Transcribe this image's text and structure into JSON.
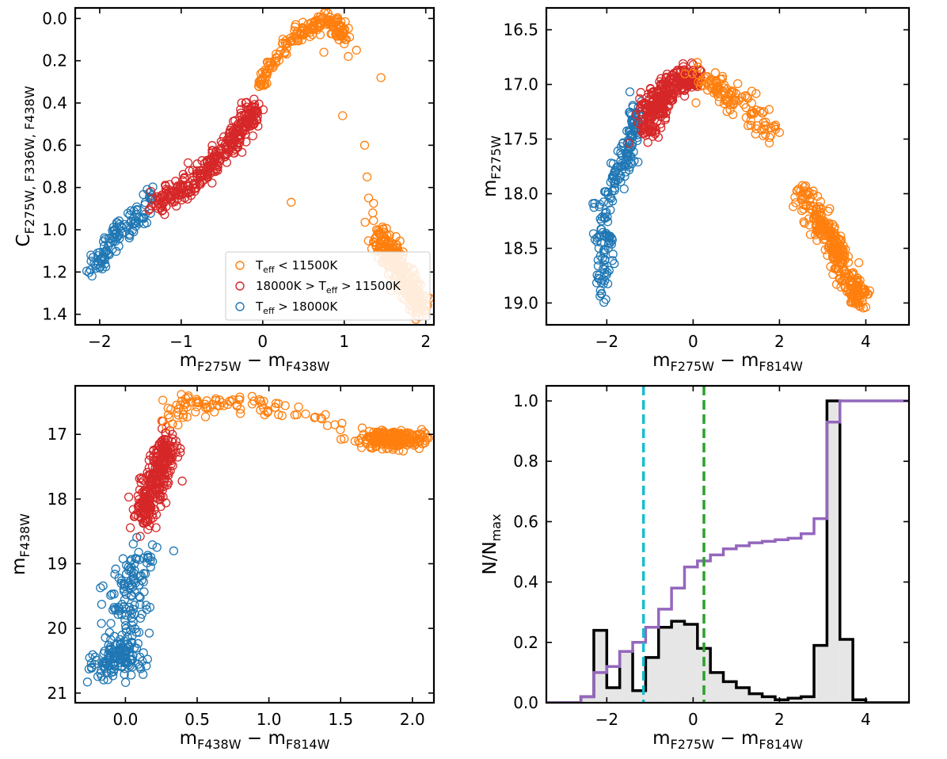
{
  "colors": {
    "cool": "#ff7f0e",
    "mid": "#d62728",
    "hot": "#1f77b4",
    "hist": "#000000",
    "cum": "#9467bd",
    "vline1": "#17becf",
    "vline2": "#2ca02c",
    "histfill": "#e6e6e6"
  },
  "chart_data": [
    {
      "id": "panel-a",
      "type": "scatter",
      "marker": "open-circle",
      "xlim": [
        -2.3,
        2.1
      ],
      "ylim": [
        1.45,
        -0.05
      ],
      "inverted_y": true,
      "xticks": [
        -2,
        -1,
        0,
        1,
        2
      ],
      "xtick_labels": [
        "−2",
        "−1",
        "0",
        "1",
        "2"
      ],
      "yticks": [
        0.0,
        0.2,
        0.4,
        0.6,
        0.8,
        1.0,
        1.2,
        1.4
      ],
      "ytick_labels": [
        "0.0",
        "0.2",
        "0.4",
        "0.6",
        "0.8",
        "1.0",
        "1.2",
        "1.4"
      ],
      "xlabel": {
        "main": "m",
        "sub1": "F275W",
        "mid": " − m",
        "sub2": "F438W"
      },
      "ylabel": {
        "main": "C",
        "sub1": "F275W, F336W, F438W"
      },
      "legend": {
        "position": "lower right",
        "entries": [
          {
            "color_key": "cool",
            "label": "T",
            "sub": "eff",
            "rest": " < 11500K"
          },
          {
            "color_key": "mid",
            "label": "18000K > T",
            "sub": "eff",
            "rest": " > 11500K"
          },
          {
            "color_key": "hot",
            "label": "T",
            "sub": "eff",
            "rest": " > 18000K"
          }
        ]
      },
      "series": [
        {
          "color_key": "cool",
          "points": [
            [
              -0.05,
              0.32
            ],
            [
              0.0,
              0.28
            ],
            [
              0.05,
              0.25
            ],
            [
              0.1,
              0.22
            ],
            [
              0.2,
              0.17
            ],
            [
              0.3,
              0.12
            ],
            [
              0.4,
              0.09
            ],
            [
              0.5,
              0.06
            ],
            [
              0.6,
              0.04
            ],
            [
              0.7,
              0.02
            ],
            [
              0.8,
              0.01
            ],
            [
              0.85,
              0.02
            ],
            [
              0.9,
              0.04
            ],
            [
              0.95,
              0.08
            ],
            [
              1.0,
              0.12
            ],
            [
              1.05,
              0.18
            ],
            [
              0.75,
              0.16
            ],
            [
              0.98,
              0.46
            ],
            [
              1.45,
              0.28
            ],
            [
              1.15,
              0.15
            ],
            [
              0.35,
              0.87
            ],
            [
              1.25,
              0.6
            ],
            [
              1.28,
              0.75
            ],
            [
              1.3,
              0.85
            ],
            [
              1.35,
              0.92
            ],
            [
              1.4,
              1.0
            ],
            [
              1.45,
              1.05
            ],
            [
              1.5,
              1.08
            ],
            [
              1.55,
              1.12
            ],
            [
              1.6,
              1.15
            ],
            [
              1.65,
              1.18
            ],
            [
              1.7,
              1.22
            ],
            [
              1.75,
              1.25
            ],
            [
              1.8,
              1.3
            ],
            [
              1.85,
              1.33
            ],
            [
              1.9,
              1.36
            ],
            [
              1.95,
              1.38
            ]
          ]
        }
      ]
    },
    {
      "id": "panel-b",
      "type": "scatter",
      "marker": "open-circle",
      "xlim": [
        -3.4,
        5.0
      ],
      "ylim": [
        19.2,
        16.3
      ],
      "inverted_y": true,
      "xticks": [
        -2,
        0,
        2,
        4
      ],
      "xtick_labels": [
        "−2",
        "0",
        "2",
        "4"
      ],
      "yticks": [
        16.5,
        17.0,
        17.5,
        18.0,
        18.5,
        19.0
      ],
      "ytick_labels": [
        "16.5",
        "17.0",
        "17.5",
        "18.0",
        "18.5",
        "19.0"
      ],
      "xlabel": {
        "main": "m",
        "sub1": "F275W",
        "mid": " − m",
        "sub2": "F814W"
      },
      "ylabel": {
        "main": "m",
        "sub1": "F275W"
      }
    },
    {
      "id": "panel-c",
      "type": "scatter",
      "marker": "open-circle",
      "xlim": [
        -0.35,
        2.15
      ],
      "ylim": [
        21.15,
        16.25
      ],
      "inverted_y": true,
      "xticks": [
        0.0,
        0.5,
        1.0,
        1.5,
        2.0
      ],
      "xtick_labels": [
        "0.0",
        "0.5",
        "1.0",
        "1.5",
        "2.0"
      ],
      "yticks": [
        17,
        18,
        19,
        20,
        21
      ],
      "ytick_labels": [
        "17",
        "18",
        "19",
        "20",
        "21"
      ],
      "xlabel": {
        "main": "m",
        "sub1": "F438W",
        "mid": " − m",
        "sub2": "F814W"
      },
      "ylabel": {
        "main": "m",
        "sub1": "F438W"
      }
    },
    {
      "id": "panel-d",
      "type": "bar",
      "xlim": [
        -3.4,
        5.0
      ],
      "ylim": [
        0.0,
        1.05
      ],
      "xticks": [
        -2,
        0,
        2,
        4
      ],
      "xtick_labels": [
        "−2",
        "0",
        "2",
        "4"
      ],
      "yticks": [
        0.0,
        0.2,
        0.4,
        0.6,
        0.8,
        1.0
      ],
      "ytick_labels": [
        "0.0",
        "0.2",
        "0.4",
        "0.6",
        "0.8",
        "1.0"
      ],
      "xlabel": {
        "main": "m",
        "sub1": "F275W",
        "mid": " − m",
        "sub2": "F814W"
      },
      "ylabel": {
        "main": "N/N",
        "sub1": "max"
      },
      "bin_edges": [
        -3.4,
        -2.6,
        -2.3,
        -2.0,
        -1.7,
        -1.4,
        -1.1,
        -0.8,
        -0.5,
        -0.2,
        0.1,
        0.4,
        0.7,
        1.0,
        1.3,
        1.6,
        1.9,
        2.2,
        2.5,
        2.8,
        3.1,
        3.4,
        3.7,
        4.0,
        4.3,
        5.0
      ],
      "hist_values": [
        0.0,
        0.02,
        0.24,
        0.05,
        0.17,
        0.04,
        0.15,
        0.25,
        0.27,
        0.26,
        0.18,
        0.1,
        0.07,
        0.05,
        0.03,
        0.02,
        0.01,
        0.015,
        0.02,
        0.19,
        1.0,
        0.21,
        0.01,
        0.0,
        0.0
      ],
      "cumulative_values": [
        0.0,
        0.02,
        0.1,
        0.12,
        0.17,
        0.2,
        0.25,
        0.31,
        0.38,
        0.45,
        0.47,
        0.49,
        0.51,
        0.52,
        0.53,
        0.535,
        0.54,
        0.545,
        0.56,
        0.61,
        0.93,
        1.0,
        1.0,
        1.0,
        1.0
      ],
      "vlines": [
        {
          "x": -1.15,
          "color_key": "vline1"
        },
        {
          "x": 0.25,
          "color_key": "vline2"
        }
      ]
    }
  ]
}
